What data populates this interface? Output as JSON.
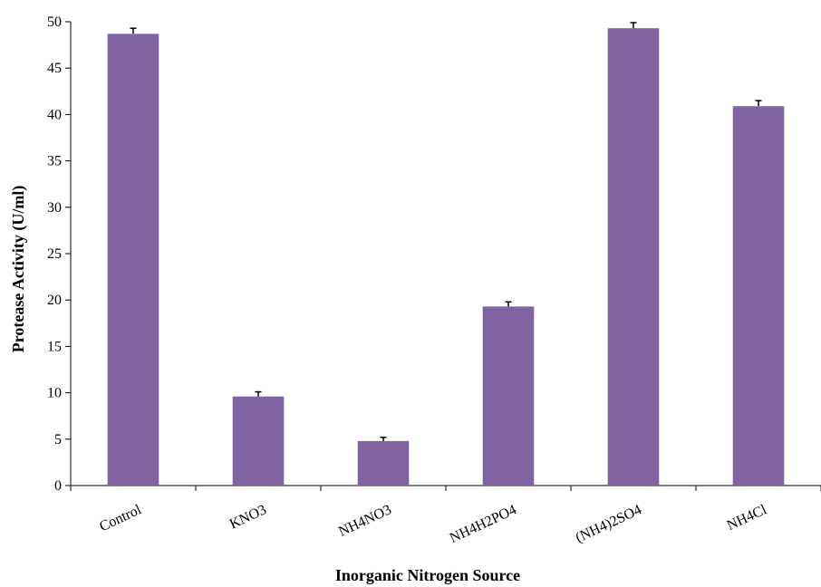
{
  "chart_data": {
    "type": "bar",
    "categories": [
      "Control",
      "KNO3",
      "NH4NO3",
      "NH4H2PO4",
      "(NH4)2SO4",
      "NH4Cl"
    ],
    "series": [
      {
        "values": [
          48.7,
          9.6,
          4.8,
          19.3,
          49.3,
          40.9
        ],
        "errors": [
          0.6,
          0.5,
          0.4,
          0.5,
          0.6,
          0.6
        ]
      }
    ],
    "xlabel": "Inorganic Nitrogen Source",
    "ylabel": "Protease Activity (U/ml)",
    "ylim": [
      0,
      50
    ],
    "yticks": [
      0,
      5,
      10,
      15,
      20,
      25,
      30,
      35,
      40,
      45,
      50
    ],
    "grid": false,
    "legend": "none",
    "bar_color": "#8064a2",
    "error_bar_color": "#000000"
  }
}
